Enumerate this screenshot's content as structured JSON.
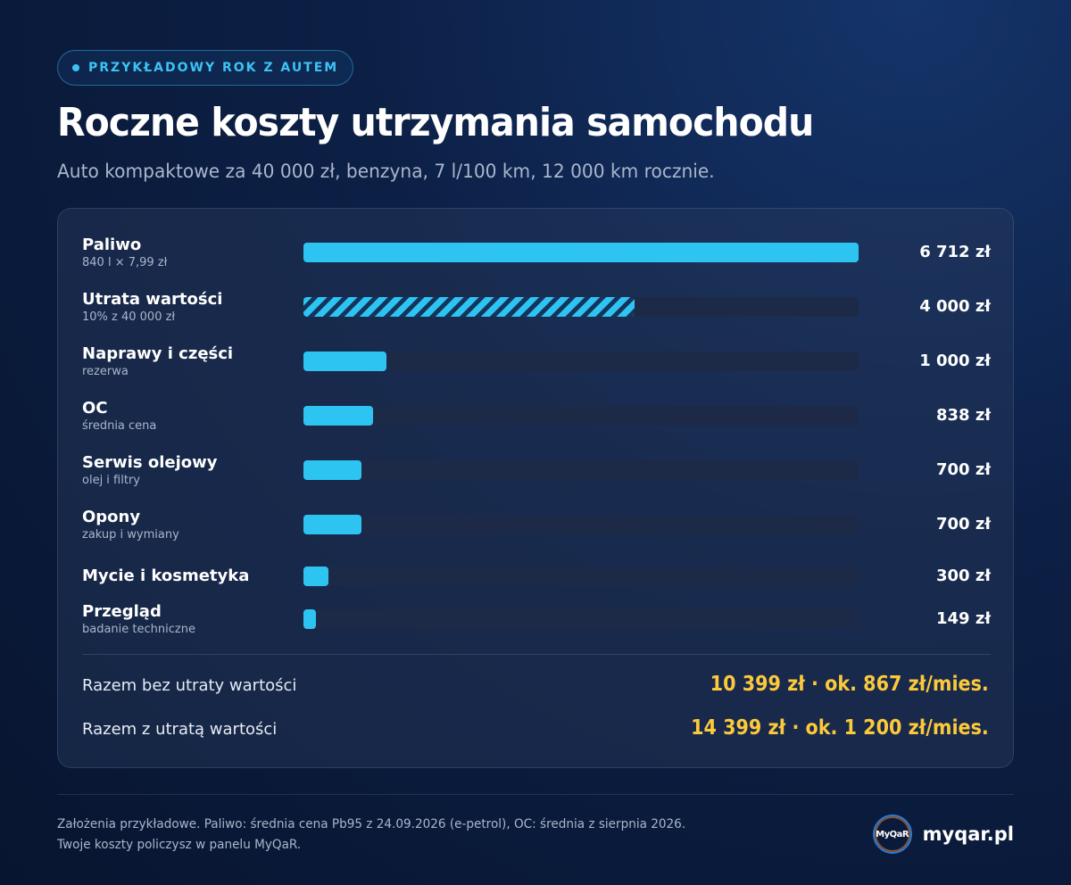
{
  "badge": {
    "label": "PRZYKŁADOWY ROK Z AUTEM"
  },
  "header": {
    "title": "Roczne koszty utrzymania samochodu",
    "subtitle": "Auto kompaktowe za 40 000 zł, benzyna, 7 l/100 km, 12 000 km rocznie."
  },
  "chart_data": {
    "type": "bar",
    "orientation": "horizontal",
    "title": "",
    "xlabel": "",
    "ylabel": "",
    "xlim": [
      0,
      6712
    ],
    "grid": false,
    "categories": [
      "Paliwo",
      "Utrata wartości",
      "Naprawy i części",
      "OC",
      "Serwis olejowy",
      "Opony",
      "Mycie i kosmetyka",
      "Przegląd"
    ],
    "sublabels": [
      "840 l × 7,99 zł",
      "10% z 40 000 zł",
      "rezerwa",
      "średnia cena",
      "olej i filtry",
      "zakup i wymiany",
      "",
      "badanie techniczne"
    ],
    "values": [
      6712,
      4000,
      1000,
      838,
      700,
      700,
      300,
      149
    ],
    "value_labels": [
      "6 712 zł",
      "4 000 zł",
      "1 000 zł",
      "838 zł",
      "700 zł",
      "700 zł",
      "300 zł",
      "149 zł"
    ],
    "hatched": [
      false,
      true,
      false,
      false,
      false,
      false,
      false,
      false
    ],
    "colors": {
      "bar": "#2ec4f2",
      "track": "#1c2a48",
      "total": "#fcc93a"
    }
  },
  "totals": [
    {
      "label": "Razem bez utraty wartości",
      "value": "10 399 zł · ok. 867 zł/mies."
    },
    {
      "label": "Razem z utratą wartości",
      "value": "14 399 zł · ok. 1 200 zł/mies."
    }
  ],
  "footer": {
    "line1": "Założenia przykładowe. Paliwo: średnia cena Pb95 z 24.09.2026 (e-petrol), OC: średnia z sierpnia 2026.",
    "line2": "Twoje koszty policzysz w panelu MyQaR."
  },
  "brand": {
    "logo_text": "MyQaR",
    "name": "myqar.pl"
  }
}
